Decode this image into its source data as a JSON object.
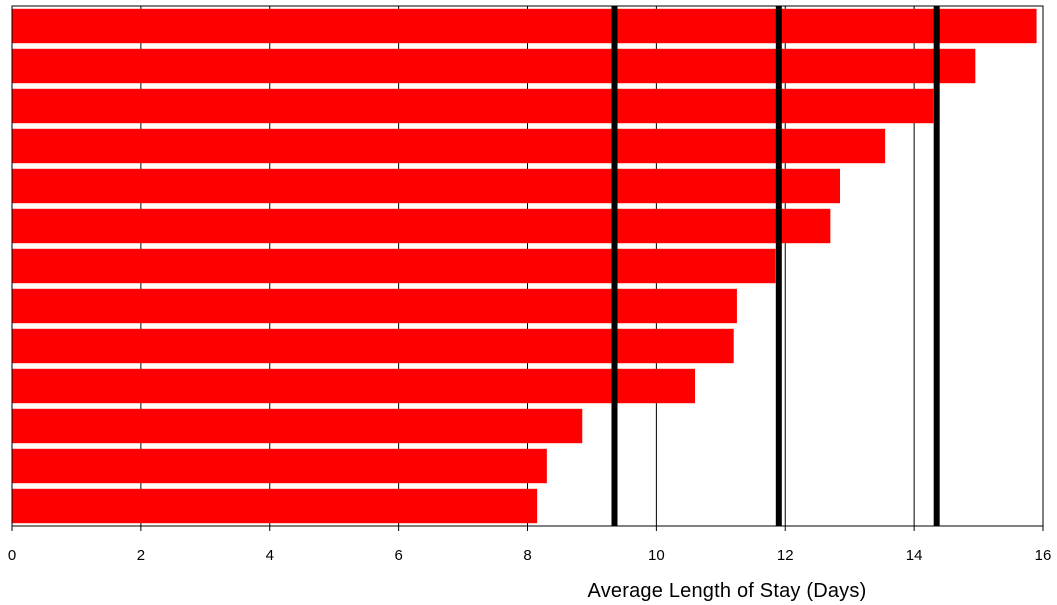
{
  "chart_data": {
    "type": "bar",
    "orientation": "horizontal",
    "title": "",
    "xlabel": "Average Length of Stay (Days)",
    "ylabel": "",
    "xlim": [
      0,
      16
    ],
    "x_ticks": [
      "0",
      "2",
      "4",
      "6",
      "8",
      "10",
      "12",
      "14",
      "16"
    ],
    "grid": "vertical gridlines at each tick",
    "values": [
      15.9,
      14.95,
      14.3,
      13.55,
      12.85,
      12.7,
      11.85,
      11.25,
      11.2,
      10.6,
      8.85,
      8.3,
      8.15
    ],
    "reference_lines": [
      9.35,
      11.9,
      14.35
    ],
    "colors": {
      "bar": "#ff0000",
      "reference_line": "#000000",
      "gridline": "#000000"
    }
  }
}
